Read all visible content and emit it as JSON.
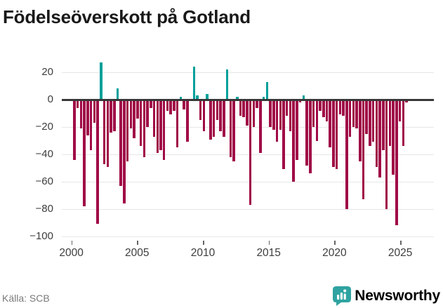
{
  "title": "Födelseöverskott på Gotland",
  "footer": {
    "source": "Källa: SCB",
    "brand": "Newsworthy"
  },
  "colors": {
    "positive": "#00a09a",
    "negative": "#a00a46",
    "brand_teal": "#2fa3a1",
    "grid": "#e7e7e7",
    "zero_axis": "#383838",
    "tick_text": "#3d3d3d",
    "source_text": "#7a7a7a"
  },
  "chart_data": {
    "type": "bar",
    "title": "Födelseöverskott på Gotland",
    "xlabel": "",
    "ylabel": "",
    "grid": true,
    "legend": false,
    "ylim": [
      -100,
      20
    ],
    "yticks": [
      20,
      0,
      -20,
      -40,
      -60,
      -80,
      -100
    ],
    "y_tick_labels": [
      "20",
      "0",
      "−20",
      "−40",
      "−60",
      "−80",
      "−100"
    ],
    "x_tick_years": [
      2000,
      2005,
      2010,
      2015,
      2020,
      2025
    ],
    "x_tick_labels": [
      "2000",
      "2005",
      "2010",
      "2015",
      "2020",
      "2025"
    ],
    "periods": [
      "2000Q1",
      "2000Q2",
      "2000Q3",
      "2000Q4",
      "2001Q1",
      "2001Q2",
      "2001Q3",
      "2001Q4",
      "2002Q1",
      "2002Q2",
      "2002Q3",
      "2002Q4",
      "2003Q1",
      "2003Q2",
      "2003Q3",
      "2003Q4",
      "2004Q1",
      "2004Q2",
      "2004Q3",
      "2004Q4",
      "2005Q1",
      "2005Q2",
      "2005Q3",
      "2005Q4",
      "2006Q1",
      "2006Q2",
      "2006Q3",
      "2006Q4",
      "2007Q1",
      "2007Q2",
      "2007Q3",
      "2007Q4",
      "2008Q1",
      "2008Q2",
      "2008Q3",
      "2008Q4",
      "2009Q1",
      "2009Q2",
      "2009Q3",
      "2009Q4",
      "2010Q1",
      "2010Q2",
      "2010Q3",
      "2010Q4",
      "2011Q1",
      "2011Q2",
      "2011Q3",
      "2011Q4",
      "2012Q1",
      "2012Q2",
      "2012Q3",
      "2012Q4",
      "2013Q1",
      "2013Q2",
      "2013Q3",
      "2013Q4",
      "2014Q1",
      "2014Q2",
      "2014Q3",
      "2014Q4",
      "2015Q1",
      "2015Q2",
      "2015Q3",
      "2015Q4",
      "2016Q1",
      "2016Q2",
      "2016Q3",
      "2016Q4",
      "2017Q1",
      "2017Q2",
      "2017Q3",
      "2017Q4",
      "2018Q1",
      "2018Q2",
      "2018Q3",
      "2018Q4",
      "2019Q1",
      "2019Q2",
      "2019Q3",
      "2019Q4",
      "2020Q1",
      "2020Q2",
      "2020Q3",
      "2020Q4",
      "2021Q1",
      "2021Q2",
      "2021Q3",
      "2021Q4",
      "2022Q1",
      "2022Q2",
      "2022Q3",
      "2022Q4",
      "2023Q1",
      "2023Q2",
      "2023Q3",
      "2023Q4",
      "2024Q1",
      "2024Q2",
      "2024Q3",
      "2024Q4",
      "2025Q1"
    ],
    "values": [
      -44,
      -6,
      -21,
      -78,
      -26,
      -37,
      -17,
      -91,
      27,
      -47,
      -49,
      -24,
      -23,
      8,
      -63,
      -76,
      -45,
      -21,
      -28,
      -14,
      -34,
      -42,
      -20,
      -6,
      -27,
      -39,
      -37,
      -44,
      -8,
      -11,
      -8,
      -35,
      2,
      -7,
      -31,
      -1,
      24,
      3,
      -15,
      -23,
      4,
      -29,
      -27,
      -15,
      -23,
      -27,
      22,
      -42,
      -45,
      2,
      -12,
      -13,
      -19,
      -77,
      -20,
      -6,
      -39,
      2,
      13,
      -20,
      -22,
      -31,
      -22,
      -51,
      -12,
      -23,
      -60,
      -44,
      -2,
      3,
      -48,
      -54,
      -20,
      -30,
      -8,
      -13,
      -16,
      -35,
      -49,
      -51,
      -11,
      -12,
      -80,
      -27,
      -20,
      -21,
      -45,
      -73,
      -25,
      -34,
      -31,
      -49,
      -57,
      -37,
      -80,
      -34,
      -55,
      -92,
      -16,
      -34,
      -2
    ]
  }
}
